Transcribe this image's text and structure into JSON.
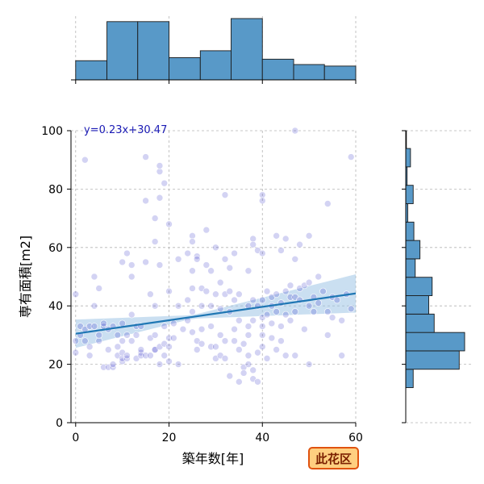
{
  "chart_data": {
    "type": "scatter",
    "title": "",
    "xlabel": "築年数[年]",
    "ylabel": "専有面積[m2]",
    "xlim": [
      -1,
      60
    ],
    "ylim": [
      0,
      100
    ],
    "xticks": [
      0,
      20,
      40,
      60
    ],
    "yticks": [
      0,
      20,
      40,
      60,
      80,
      100
    ],
    "grid": true,
    "district_label": "此花区",
    "regression": {
      "equation": "y=0.23x+30.47",
      "slope": 0.23,
      "intercept": 30.47
    },
    "x_histogram": {
      "bin_edges": [
        0,
        6.7,
        13.3,
        20,
        26.7,
        33.3,
        40,
        46.7,
        53.3,
        60
      ],
      "counts": [
        25,
        76,
        76,
        29,
        38,
        80,
        27,
        20,
        18
      ]
    },
    "y_histogram": {
      "bin_edges": [
        12,
        18.3,
        24.6,
        30.9,
        37.2,
        43.5,
        49.8,
        56.1,
        62.4,
        68.7,
        75,
        81.3,
        87.6,
        93.9,
        100
      ],
      "counts": [
        11,
        79,
        87,
        42,
        34,
        39,
        14,
        21,
        12,
        3,
        11,
        2,
        7,
        1
      ]
    },
    "points": [
      [
        0,
        28
      ],
      [
        0,
        44
      ],
      [
        0,
        24
      ],
      [
        1,
        33
      ],
      [
        1,
        30
      ],
      [
        2,
        90
      ],
      [
        2,
        28
      ],
      [
        2,
        32
      ],
      [
        3,
        33
      ],
      [
        3,
        26
      ],
      [
        3,
        23
      ],
      [
        4,
        50
      ],
      [
        4,
        40
      ],
      [
        4,
        33
      ],
      [
        5,
        46
      ],
      [
        5,
        28
      ],
      [
        5,
        30
      ],
      [
        6,
        33
      ],
      [
        6,
        34
      ],
      [
        6,
        19
      ],
      [
        7,
        19
      ],
      [
        7,
        25
      ],
      [
        7,
        32
      ],
      [
        8,
        33
      ],
      [
        8,
        19
      ],
      [
        8,
        20
      ],
      [
        9,
        30
      ],
      [
        9,
        26
      ],
      [
        9,
        23
      ],
      [
        10,
        21
      ],
      [
        10,
        22
      ],
      [
        10,
        24
      ],
      [
        10,
        55
      ],
      [
        10,
        28
      ],
      [
        10,
        34
      ],
      [
        11,
        58
      ],
      [
        11,
        30
      ],
      [
        11,
        22
      ],
      [
        11,
        23
      ],
      [
        12,
        50
      ],
      [
        12,
        54
      ],
      [
        12,
        37
      ],
      [
        12,
        28
      ],
      [
        13,
        33
      ],
      [
        13,
        30
      ],
      [
        13,
        22
      ],
      [
        14,
        24
      ],
      [
        14,
        23
      ],
      [
        14,
        25
      ],
      [
        14,
        33
      ],
      [
        15,
        91
      ],
      [
        15,
        76
      ],
      [
        15,
        55
      ],
      [
        15,
        23
      ],
      [
        16,
        44
      ],
      [
        16,
        23
      ],
      [
        16,
        29
      ],
      [
        17,
        70
      ],
      [
        17,
        62
      ],
      [
        17,
        25
      ],
      [
        17,
        25
      ],
      [
        17,
        40
      ],
      [
        17,
        30
      ],
      [
        18,
        54
      ],
      [
        18,
        26
      ],
      [
        18,
        20
      ],
      [
        18,
        77
      ],
      [
        18,
        86
      ],
      [
        18,
        88
      ],
      [
        19,
        82
      ],
      [
        19,
        23
      ],
      [
        19,
        27
      ],
      [
        19,
        33
      ],
      [
        20,
        68
      ],
      [
        20,
        45
      ],
      [
        20,
        29
      ],
      [
        20,
        26
      ],
      [
        20,
        21
      ],
      [
        21,
        29
      ],
      [
        21,
        34
      ],
      [
        22,
        56
      ],
      [
        22,
        40
      ],
      [
        22,
        20
      ],
      [
        23,
        32
      ],
      [
        24,
        58
      ],
      [
        24,
        35
      ],
      [
        24,
        42
      ],
      [
        25,
        64
      ],
      [
        25,
        62
      ],
      [
        25,
        46
      ],
      [
        25,
        52
      ],
      [
        25,
        31
      ],
      [
        25,
        38
      ],
      [
        26,
        57
      ],
      [
        26,
        56
      ],
      [
        26,
        28
      ],
      [
        26,
        25
      ],
      [
        27,
        46
      ],
      [
        27,
        40
      ],
      [
        27,
        32
      ],
      [
        27,
        27
      ],
      [
        28,
        66
      ],
      [
        28,
        54
      ],
      [
        28,
        45
      ],
      [
        29,
        52
      ],
      [
        29,
        40
      ],
      [
        29,
        33
      ],
      [
        29,
        26
      ],
      [
        30,
        60
      ],
      [
        30,
        44
      ],
      [
        30,
        26
      ],
      [
        30,
        22
      ],
      [
        31,
        48
      ],
      [
        31,
        39
      ],
      [
        31,
        30
      ],
      [
        31,
        23
      ],
      [
        32,
        78
      ],
      [
        32,
        56
      ],
      [
        32,
        44
      ],
      [
        32,
        28
      ],
      [
        32,
        22
      ],
      [
        33,
        53
      ],
      [
        33,
        45
      ],
      [
        33,
        38
      ],
      [
        33,
        16
      ],
      [
        34,
        58
      ],
      [
        34,
        42
      ],
      [
        34,
        32
      ],
      [
        34,
        28
      ],
      [
        35,
        44
      ],
      [
        35,
        35
      ],
      [
        35,
        25
      ],
      [
        35,
        14
      ],
      [
        36,
        27
      ],
      [
        36,
        19
      ],
      [
        36,
        17
      ],
      [
        37,
        52
      ],
      [
        37,
        40
      ],
      [
        37,
        33
      ],
      [
        37,
        30
      ],
      [
        37,
        23
      ],
      [
        37,
        20
      ],
      [
        38,
        63
      ],
      [
        38,
        61
      ],
      [
        38,
        42
      ],
      [
        38,
        35
      ],
      [
        38,
        18
      ],
      [
        38,
        15
      ],
      [
        39,
        59
      ],
      [
        39,
        40
      ],
      [
        39,
        24
      ],
      [
        39,
        14
      ],
      [
        40,
        78
      ],
      [
        40,
        76
      ],
      [
        40,
        58
      ],
      [
        40,
        42
      ],
      [
        40,
        36
      ],
      [
        40,
        33
      ],
      [
        40,
        30
      ],
      [
        40,
        26
      ],
      [
        41,
        45
      ],
      [
        41,
        37
      ],
      [
        41,
        22
      ],
      [
        42,
        43
      ],
      [
        42,
        40
      ],
      [
        42,
        34
      ],
      [
        42,
        29
      ],
      [
        43,
        64
      ],
      [
        43,
        44
      ],
      [
        43,
        38
      ],
      [
        43,
        25
      ],
      [
        44,
        59
      ],
      [
        44,
        41
      ],
      [
        44,
        33
      ],
      [
        44,
        28
      ],
      [
        45,
        63
      ],
      [
        45,
        45
      ],
      [
        45,
        37
      ],
      [
        45,
        23
      ],
      [
        46,
        47
      ],
      [
        46,
        43
      ],
      [
        46,
        35
      ],
      [
        47,
        100
      ],
      [
        47,
        56
      ],
      [
        47,
        43
      ],
      [
        47,
        38
      ],
      [
        47,
        23
      ],
      [
        48,
        61
      ],
      [
        48,
        46
      ],
      [
        48,
        42
      ],
      [
        49,
        47
      ],
      [
        49,
        32
      ],
      [
        50,
        64
      ],
      [
        50,
        48
      ],
      [
        50,
        40
      ],
      [
        50,
        20
      ],
      [
        51,
        43
      ],
      [
        51,
        38
      ],
      [
        52,
        50
      ],
      [
        52,
        41
      ],
      [
        53,
        45
      ],
      [
        54,
        75
      ],
      [
        54,
        38
      ],
      [
        54,
        30
      ],
      [
        55,
        43
      ],
      [
        55,
        36
      ],
      [
        56,
        42
      ],
      [
        57,
        35
      ],
      [
        57,
        23
      ],
      [
        58,
        44
      ],
      [
        59,
        91
      ],
      [
        59,
        39
      ]
    ]
  }
}
